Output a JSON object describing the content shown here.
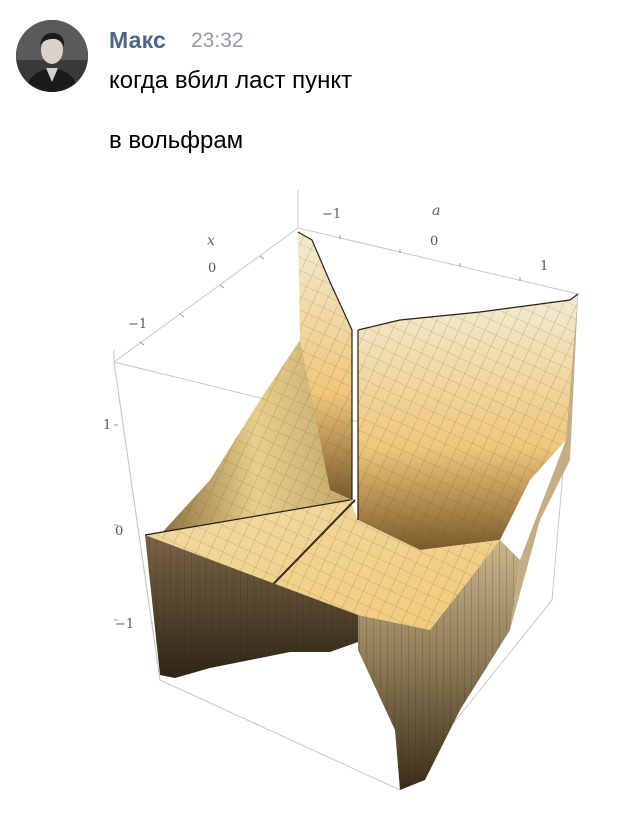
{
  "message": {
    "author": "Макс",
    "time": "23:32",
    "lines": [
      "когда вбил ласт пункт",
      "в вольфрам"
    ]
  },
  "plot": {
    "axis_labels": {
      "x": "x",
      "a": "a"
    },
    "x_ticks": [
      "0",
      "−1"
    ],
    "a_ticks": [
      "−1",
      "0",
      "1"
    ],
    "z_ticks": [
      "1",
      "0",
      "−1"
    ]
  }
}
